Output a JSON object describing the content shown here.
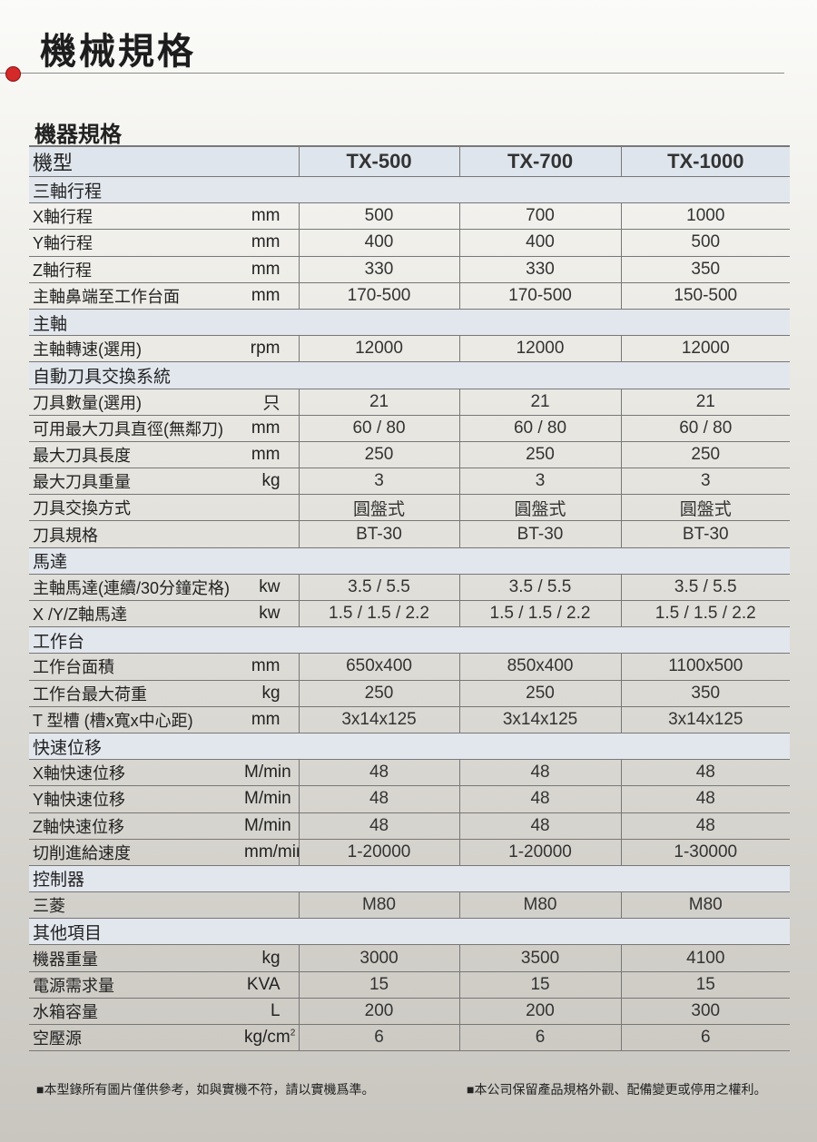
{
  "title": "機械規格",
  "subtitle": "機器規格",
  "header": {
    "label": "機型",
    "models": [
      "TX-500",
      "TX-700",
      "TX-1000"
    ]
  },
  "rows": [
    {
      "section": "三軸行程"
    },
    {
      "label": "X軸行程",
      "unit": "mm",
      "values": [
        "500",
        "700",
        "1000"
      ]
    },
    {
      "label": "Y軸行程",
      "unit": "mm",
      "values": [
        "400",
        "400",
        "500"
      ]
    },
    {
      "label": "Z軸行程",
      "unit": "mm",
      "values": [
        "330",
        "330",
        "350"
      ]
    },
    {
      "label": "主軸鼻端至工作台面",
      "unit": "mm",
      "values": [
        "170-500",
        "170-500",
        "150-500"
      ]
    },
    {
      "section": "主軸"
    },
    {
      "label": "主軸轉速(選用)",
      "unit": "rpm",
      "values": [
        "12000",
        "12000",
        "12000"
      ]
    },
    {
      "section": "自動刀具交換系統"
    },
    {
      "label": "刀具數量(選用)",
      "unit": "只",
      "values": [
        "21",
        "21",
        "21"
      ]
    },
    {
      "label": "可用最大刀具直徑(無鄰刀)",
      "unit": "mm",
      "values": [
        "60 / 80",
        "60 / 80",
        "60 / 80"
      ]
    },
    {
      "label": "最大刀具長度",
      "unit": "mm",
      "values": [
        "250",
        "250",
        "250"
      ]
    },
    {
      "label": "最大刀具重量",
      "unit": "kg",
      "values": [
        "3",
        "3",
        "3"
      ]
    },
    {
      "label": "刀具交換方式",
      "unit": "",
      "values": [
        "圓盤式",
        "圓盤式",
        "圓盤式"
      ]
    },
    {
      "label": "刀具規格",
      "unit": "",
      "values": [
        "BT-30",
        "BT-30",
        "BT-30"
      ]
    },
    {
      "section": "馬達"
    },
    {
      "label": "主軸馬達(連續/30分鐘定格)",
      "unit": "kw",
      "values": [
        "3.5 / 5.5",
        "3.5 / 5.5",
        "3.5 / 5.5"
      ]
    },
    {
      "label": "X /Y/Z軸馬達",
      "unit": "kw",
      "values": [
        "1.5 / 1.5 / 2.2",
        "1.5 / 1.5 / 2.2",
        "1.5 / 1.5 / 2.2"
      ]
    },
    {
      "section": "工作台"
    },
    {
      "label": "工作台面積",
      "unit": "mm",
      "values": [
        "650x400",
        "850x400",
        "1100x500"
      ]
    },
    {
      "label": "工作台最大荷重",
      "unit": "kg",
      "values": [
        "250",
        "250",
        "350"
      ]
    },
    {
      "label": "T 型槽 (槽x寬x中心距)",
      "unit": "mm",
      "values": [
        "3x14x125",
        "3x14x125",
        "3x14x125"
      ]
    },
    {
      "section": "快速位移"
    },
    {
      "label": "X軸快速位移",
      "unit": "M/min",
      "values": [
        "48",
        "48",
        "48"
      ]
    },
    {
      "label": "Y軸快速位移",
      "unit": "M/min",
      "values": [
        "48",
        "48",
        "48"
      ]
    },
    {
      "label": "Z軸快速位移",
      "unit": "M/min",
      "values": [
        "48",
        "48",
        "48"
      ]
    },
    {
      "label": "切削進給速度",
      "unit": "mm/min",
      "values": [
        "1-20000",
        "1-20000",
        "1-30000"
      ]
    },
    {
      "section": "控制器"
    },
    {
      "label": "三菱",
      "unit": "",
      "values": [
        "M80",
        "M80",
        "M80"
      ]
    },
    {
      "section": "其他項目"
    },
    {
      "label": "機器重量",
      "unit": "kg",
      "values": [
        "3000",
        "3500",
        "4100"
      ]
    },
    {
      "label": "電源需求量",
      "unit": "KVA",
      "values": [
        "15",
        "15",
        "15"
      ]
    },
    {
      "label": "水箱容量",
      "unit": "L",
      "values": [
        "200",
        "200",
        "300"
      ]
    },
    {
      "label": "空壓源",
      "unit": "kg/cm",
      "unit_sup": "2",
      "values": [
        "6",
        "6",
        "6"
      ]
    }
  ],
  "footnotes": [
    "■本型錄所有圖片僅供參考，如與實機不符，請以實機爲準。",
    "■本公司保留產品規格外觀、配備變更或停用之權利。"
  ]
}
